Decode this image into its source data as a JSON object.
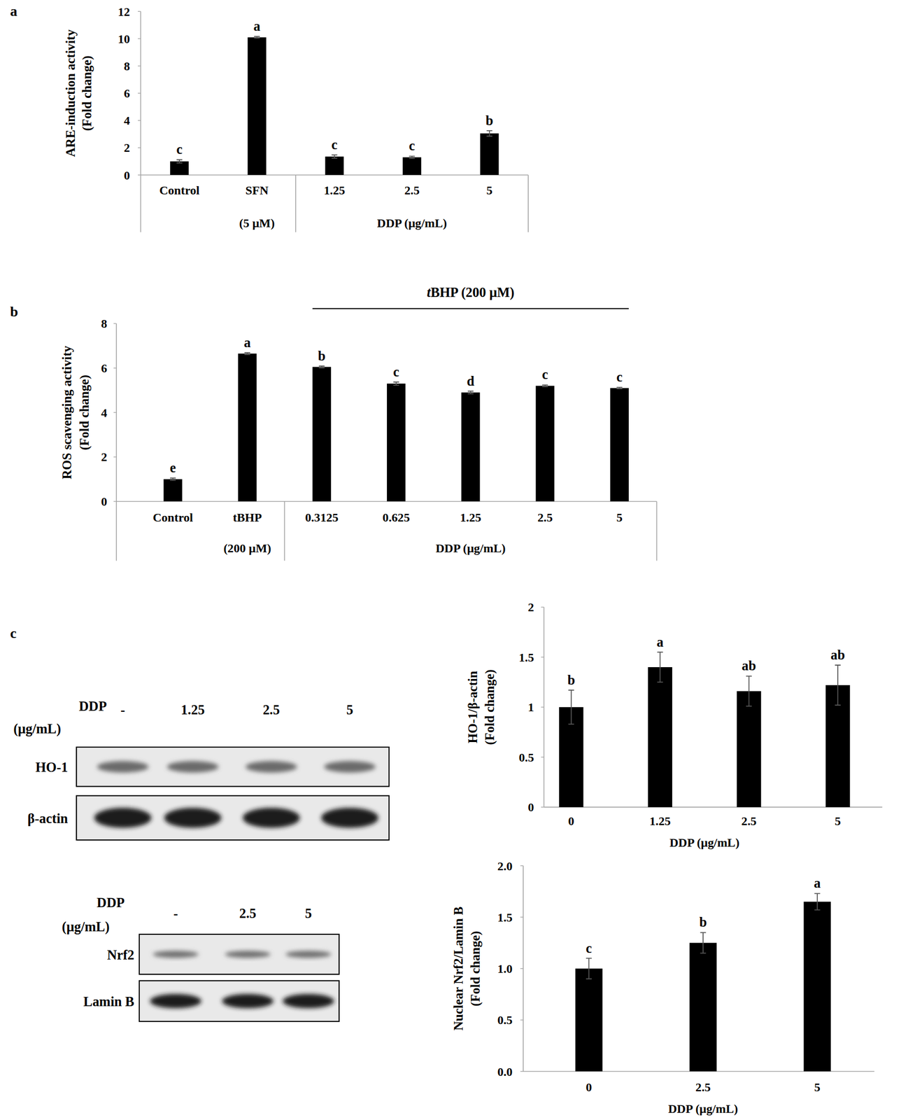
{
  "panel_labels": [
    "a",
    "b",
    "c"
  ],
  "chart_data": [
    {
      "type": "bar",
      "y_label": [
        "ARE-induction activity",
        "(Fold change)"
      ],
      "categories": [
        "Control",
        "SFN",
        "1.25",
        "2.5",
        "5"
      ],
      "sublabels": [
        null,
        "(5 μM)",
        null,
        null,
        null
      ],
      "group": {
        "label": "DDP (μg/mL)",
        "from": "1.25",
        "to": "5"
      },
      "values": [
        1.0,
        10.1,
        1.35,
        1.3,
        3.05
      ],
      "errors": [
        0.12,
        0.06,
        0.12,
        0.08,
        0.2
      ],
      "letters": [
        "c",
        "a",
        "c",
        "c",
        "b"
      ],
      "color": "#000000",
      "ylim": [
        0,
        12
      ],
      "yticks": [
        0,
        2,
        4,
        6,
        8,
        10,
        12
      ],
      "grid": false
    },
    {
      "type": "bar",
      "y_label": [
        "ROS scavenging activity",
        "(Fold change)"
      ],
      "categories": [
        "Control",
        "tBHP",
        "0.3125",
        "0.625",
        "1.25",
        "2.5",
        "5"
      ],
      "sublabels": [
        null,
        "(200 μM)",
        null,
        null,
        null,
        null,
        null
      ],
      "group": {
        "label": "DDP (μg/mL)",
        "from": "0.3125",
        "to": "5"
      },
      "bracket": {
        "label": "tBHP (200 μM)",
        "from": "0.3125",
        "to": "5"
      },
      "values": [
        1.0,
        6.65,
        6.05,
        5.3,
        4.9,
        5.2,
        5.1
      ],
      "errors": [
        0.05,
        0.04,
        0.04,
        0.07,
        0.06,
        0.04,
        0.03
      ],
      "letters": [
        "e",
        "a",
        "b",
        "c",
        "d",
        "c",
        "c"
      ],
      "color": "#000000",
      "ylim": [
        0,
        8
      ],
      "yticks": [
        0,
        2,
        4,
        6,
        8
      ],
      "grid": false
    },
    {
      "type": "bar",
      "y_label": [
        "HO-1/β-actin",
        "(Fold change)"
      ],
      "x_label": "DDP (μg/mL)",
      "categories": [
        "0",
        "1.25",
        "2.5",
        "5"
      ],
      "values": [
        1.0,
        1.4,
        1.16,
        1.22
      ],
      "errors": [
        0.17,
        0.15,
        0.15,
        0.2
      ],
      "letters": [
        "b",
        "a",
        "ab",
        "ab"
      ],
      "color": "#000000",
      "ylim": [
        0,
        2
      ],
      "yticks": [
        0,
        0.5,
        1,
        1.5,
        2
      ],
      "grid": false
    },
    {
      "type": "bar",
      "y_label": [
        "Nuclear Nrf2/Lamin B",
        "(Fold change)"
      ],
      "x_label": "DDP (μg/mL)",
      "categories": [
        "0",
        "2.5",
        "5"
      ],
      "values": [
        1.0,
        1.25,
        1.65
      ],
      "errors": [
        0.1,
        0.1,
        0.08
      ],
      "letters": [
        "c",
        "b",
        "a"
      ],
      "color": "#000000",
      "ylim": [
        0,
        2
      ],
      "yticks": [
        {
          "value": 0,
          "label": "0.0"
        },
        {
          "value": 0.5,
          "label": "0.5"
        },
        {
          "value": 1,
          "label": "1.0"
        },
        {
          "value": 1.5,
          "label": "1.5"
        },
        {
          "value": 2,
          "label": "2.0"
        }
      ],
      "grid": false
    }
  ],
  "blots": [
    {
      "condition": [
        "DDP",
        "(μg/mL)"
      ],
      "lanes": [
        "-",
        "1.25",
        "2.5",
        "5"
      ],
      "rows": [
        "HO-1",
        "β-actin"
      ]
    },
    {
      "condition": [
        "DDP",
        "(μg/mL)"
      ],
      "lanes": [
        "-",
        "2.5",
        "5"
      ],
      "rows": [
        "Nrf2",
        "Lamin B"
      ]
    }
  ]
}
